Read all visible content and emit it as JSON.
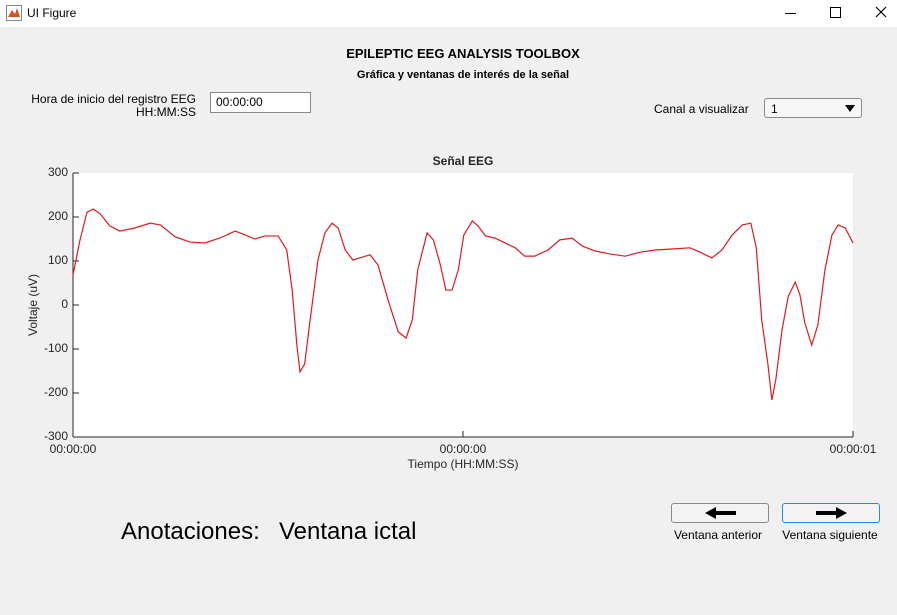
{
  "window": {
    "title": "UI Figure"
  },
  "header": {
    "title": "EPILEPTIC EEG ANALYSIS TOOLBOX",
    "subtitle": "Gráfica y ventanas de interés de la señal"
  },
  "start_time": {
    "label_lines": [
      "Hora de inicio del registro EEG",
      "HH:MM:SS"
    ],
    "value": "00:00:00"
  },
  "channel": {
    "label": "Canal a visualizar",
    "value": "1"
  },
  "chart_data": {
    "type": "line",
    "title": "Señal EEG",
    "x_label": "Tiempo (HH:MM:SS)",
    "y_label": "Voltaje (uV)",
    "color": "#e0191f",
    "x": [
      0,
      0.009,
      0.018,
      0.026,
      0.035,
      0.047,
      0.06,
      0.079,
      0.099,
      0.112,
      0.131,
      0.15,
      0.169,
      0.188,
      0.208,
      0.221,
      0.233,
      0.246,
      0.263,
      0.274,
      0.281,
      0.287,
      0.291,
      0.297,
      0.304,
      0.314,
      0.323,
      0.332,
      0.34,
      0.349,
      0.359,
      0.371,
      0.381,
      0.391,
      0.404,
      0.417,
      0.427,
      0.435,
      0.442,
      0.454,
      0.462,
      0.471,
      0.478,
      0.486,
      0.494,
      0.501,
      0.512,
      0.519,
      0.529,
      0.541,
      0.554,
      0.567,
      0.579,
      0.592,
      0.609,
      0.624,
      0.64,
      0.653,
      0.669,
      0.688,
      0.708,
      0.727,
      0.746,
      0.765,
      0.791,
      0.804,
      0.819,
      0.832,
      0.845,
      0.858,
      0.869,
      0.876,
      0.883,
      0.891,
      0.896,
      0.901,
      0.909,
      0.917,
      0.926,
      0.932,
      0.938,
      0.947,
      0.955,
      0.964,
      0.973,
      0.981,
      0.99,
      1.0
    ],
    "values": [
      68,
      148,
      211,
      218,
      207,
      180,
      168,
      175,
      186,
      182,
      155,
      143,
      141,
      152,
      168,
      159,
      150,
      157,
      157,
      125,
      34,
      -91,
      -152,
      -134,
      -34,
      102,
      164,
      186,
      175,
      125,
      102,
      109,
      114,
      91,
      11,
      -61,
      -75,
      -34,
      80,
      164,
      148,
      91,
      34,
      34,
      80,
      159,
      191,
      180,
      157,
      152,
      141,
      130,
      111,
      111,
      125,
      148,
      152,
      134,
      123,
      116,
      111,
      120,
      125,
      127,
      130,
      120,
      107,
      125,
      159,
      182,
      186,
      130,
      -34,
      -136,
      -216,
      -170,
      -57,
      20,
      52,
      23,
      -39,
      -91,
      -45,
      80,
      159,
      182,
      175,
      141
    ],
    "xlim": [
      0,
      1
    ],
    "ylim": [
      -300,
      300
    ],
    "xticks": [
      {
        "value": 0,
        "label": "00:00:00"
      },
      {
        "value": 0.5,
        "label": "00:00:00"
      },
      {
        "value": 1,
        "label": "00:00:01"
      }
    ],
    "yticks": [
      -300,
      -200,
      -100,
      0,
      100,
      200,
      300
    ],
    "grid": false
  },
  "annotations": {
    "label": "Anotaciones:",
    "value": "Ventana ictal"
  },
  "buttons": [
    {
      "label": "Ventana anterior"
    },
    {
      "label": "Ventana siguiente"
    }
  ]
}
